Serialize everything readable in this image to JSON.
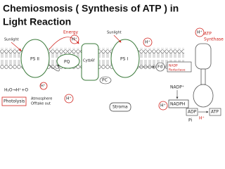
{
  "title": {
    "line_1": "Chemiosmosis ( Synthesis of ATP ) in",
    "line_2": "Light Reaction"
  },
  "components": {
    "ps2": "PS II",
    "pq": "PQ",
    "cytb6f": "Cytb6f",
    "ps1": "PS I",
    "pc": "PC",
    "fd": "Fd",
    "nadp_reductase": [
      "NADP",
      "Reductase"
    ],
    "atp_synthase": [
      "ATP",
      "Synthase"
    ]
  },
  "ions": {
    "h_plus": "H⁺"
  },
  "labels": {
    "sunlight": "Sunlight",
    "energy": "Energy",
    "water_split": "H₂O→H⁺+O",
    "photolysis": "Photolysis",
    "atmosphere": [
      "Atmosphere",
      "Offtake out"
    ],
    "stroma": "Stroma",
    "nadp": "NADP⁺",
    "nadph": "NADPH",
    "adp": "ADP",
    "pi": "Pi",
    "atp": "ATP"
  }
}
